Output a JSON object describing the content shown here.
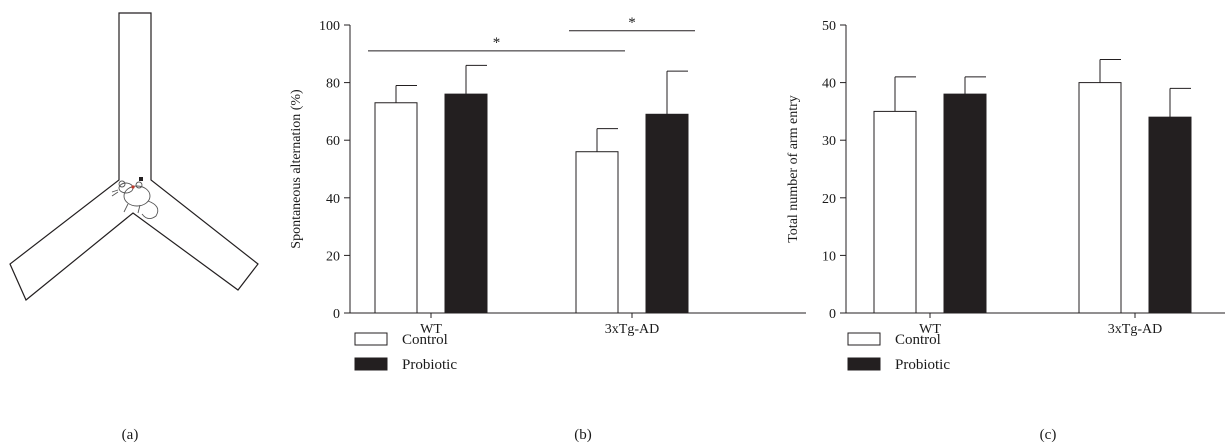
{
  "colors": {
    "control": "#ffffff",
    "probiotic": "#231f20",
    "stroke": "#231f20",
    "mouse_eye": "#c0392b"
  },
  "panels": [
    {
      "id": "a",
      "label": "(a)",
      "type": "diagram",
      "description_icon": "y-maze-mouse-icon"
    },
    {
      "id": "b",
      "label": "(b)"
    },
    {
      "id": "c",
      "label": "(c)"
    }
  ],
  "chart_data": [
    {
      "type": "bar",
      "panel": "(b)",
      "categories": [
        "WT",
        "3xTg-AD"
      ],
      "series": [
        {
          "name": "Control",
          "values": [
            73,
            56
          ],
          "errors": [
            6,
            8
          ]
        },
        {
          "name": "Probiotic",
          "values": [
            76,
            69
          ],
          "errors": [
            10,
            15
          ]
        }
      ],
      "xlabel": "",
      "ylabel": "Spontaneous alternation (%)",
      "ylim": [
        0,
        100
      ],
      "yticks": [
        0,
        20,
        40,
        60,
        80,
        100
      ],
      "significance": [
        {
          "from": {
            "category": 0,
            "series": 0
          },
          "to": {
            "category": 1,
            "series": 0
          },
          "label": "*",
          "y": 91
        },
        {
          "from": {
            "category": 1,
            "series": 0
          },
          "to": {
            "category": 1,
            "series": 1
          },
          "label": "*",
          "y": 98
        }
      ],
      "legend": {
        "position": "bottom-left",
        "entries": [
          "Control",
          "Probiotic"
        ]
      }
    },
    {
      "type": "bar",
      "panel": "(c)",
      "categories": [
        "WT",
        "3xTg-AD"
      ],
      "series": [
        {
          "name": "Control",
          "values": [
            35,
            40
          ],
          "errors": [
            6,
            4
          ]
        },
        {
          "name": "Probiotic",
          "values": [
            38,
            34
          ],
          "errors": [
            3,
            5
          ]
        }
      ],
      "xlabel": "",
      "ylabel": "Total number of arm entry",
      "ylim": [
        0,
        50
      ],
      "yticks": [
        0,
        10,
        20,
        30,
        40,
        50
      ],
      "significance": [],
      "legend": {
        "position": "bottom-left",
        "entries": [
          "Control",
          "Probiotic"
        ]
      }
    }
  ]
}
